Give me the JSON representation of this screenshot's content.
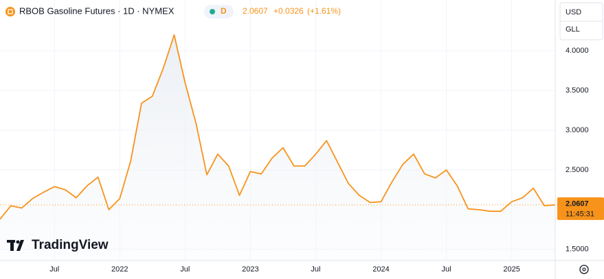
{
  "header": {
    "title": "RBOB Gasoline Futures · 1D · NYMEX",
    "interval_badge": "D",
    "last": 2.0607,
    "change": "+0.0326",
    "change_pct": "(+1.61%)"
  },
  "currency": "USD",
  "unit": "GLL",
  "last_time": "11:45:31",
  "watermark": "TradingView",
  "chart_data": {
    "type": "line",
    "color": "#f7931a",
    "x": [
      "2021-02",
      "2021-03",
      "2021-04",
      "2021-05",
      "2021-06",
      "2021-07",
      "2021-08",
      "2021-09",
      "2021-10",
      "2021-11",
      "2021-12",
      "2022-01",
      "2022-02",
      "2022-03",
      "2022-04",
      "2022-05",
      "2022-06",
      "2022-07",
      "2022-08",
      "2022-09",
      "2022-10",
      "2022-11",
      "2022-12",
      "2023-01",
      "2023-02",
      "2023-03",
      "2023-04",
      "2023-05",
      "2023-06",
      "2023-07",
      "2023-08",
      "2023-09",
      "2023-10",
      "2023-11",
      "2023-12",
      "2024-01",
      "2024-02",
      "2024-03",
      "2024-04",
      "2024-05",
      "2024-06",
      "2024-07",
      "2024-08",
      "2024-09",
      "2024-10",
      "2024-11",
      "2024-12",
      "2025-01",
      "2025-02",
      "2025-03",
      "2025-04",
      "2025-05"
    ],
    "values": [
      1.88,
      2.05,
      2.02,
      2.14,
      2.22,
      2.29,
      2.25,
      2.15,
      2.3,
      2.41,
      2.0,
      2.14,
      2.61,
      3.34,
      3.43,
      3.78,
      4.2,
      3.6,
      3.09,
      2.44,
      2.7,
      2.55,
      2.18,
      2.48,
      2.45,
      2.65,
      2.78,
      2.55,
      2.55,
      2.7,
      2.87,
      2.6,
      2.33,
      2.18,
      2.09,
      2.1,
      2.35,
      2.57,
      2.7,
      2.45,
      2.4,
      2.5,
      2.3,
      2.01,
      2.0,
      1.98,
      1.98,
      2.1,
      2.15,
      2.27,
      2.05,
      2.0607
    ],
    "xlim": [
      "2021-02",
      "2025-05"
    ],
    "xticks": [
      {
        "value": "2021-07",
        "label": "Jul"
      },
      {
        "value": "2022-01",
        "label": "2022"
      },
      {
        "value": "2022-07",
        "label": "Jul"
      },
      {
        "value": "2023-01",
        "label": "2023"
      },
      {
        "value": "2023-07",
        "label": "Jul"
      },
      {
        "value": "2024-01",
        "label": "2024"
      },
      {
        "value": "2024-07",
        "label": "Jul"
      },
      {
        "value": "2025-01",
        "label": "2025"
      }
    ],
    "ylim": [
      1.36,
      4.64
    ],
    "yticks": [
      {
        "value": 1.5,
        "label": "1.5000"
      },
      {
        "value": 2.5,
        "label": "2.5000"
      },
      {
        "value": 3,
        "label": "3.0000"
      },
      {
        "value": 3.5,
        "label": "3.5000"
      },
      {
        "value": 4,
        "label": "4.0000"
      }
    ],
    "grid": true
  }
}
